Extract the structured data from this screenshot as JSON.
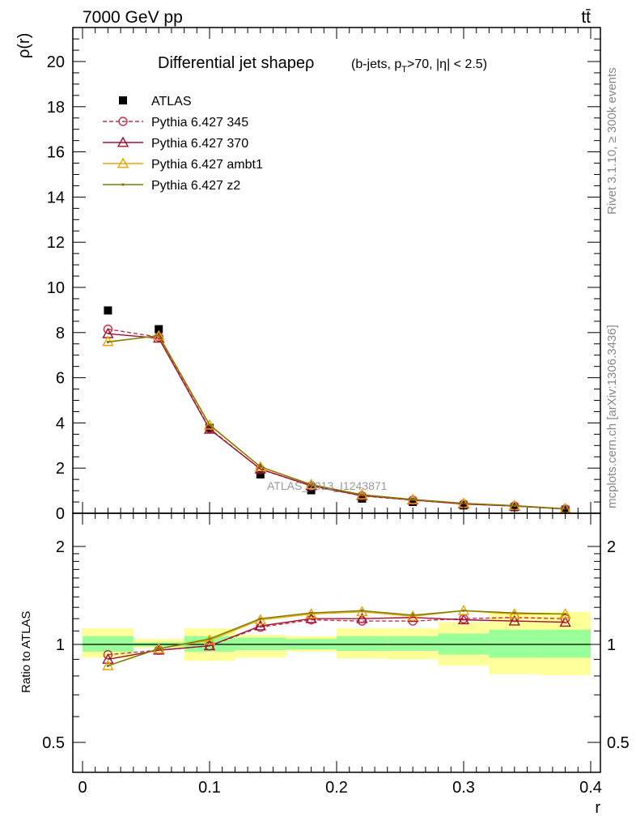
{
  "header": {
    "energy_label": "7000 GeV pp",
    "process_label": "tt̄"
  },
  "side_labels": {
    "rivet": "Rivet 3.1.10, ≥ 300k events",
    "mcplots": "mcplots.cern.ch [arXiv:1306.3436]"
  },
  "chart_data": [
    {
      "type": "line",
      "title_main": "Differential jet shapeρ",
      "title_sub": "(b-jets, p",
      "title_sub_T": "T",
      "title_sub_rest": ">70, |η| < 2.5)",
      "ylabel": "ρ(r)",
      "xlabel": "r",
      "watermark": "ATLAS_2013_I1243871",
      "xlim": [
        0,
        0.4
      ],
      "ylim": [
        0,
        21.5
      ],
      "yticks": [
        0,
        2,
        4,
        6,
        8,
        10,
        12,
        14,
        16,
        18,
        20
      ],
      "x": [
        0.02,
        0.06,
        0.1,
        0.14,
        0.18,
        0.22,
        0.26,
        0.3,
        0.34,
        0.38
      ],
      "legend_position": "top-left",
      "series": [
        {
          "name": "ATLAS",
          "color": "#000000",
          "marker": "square",
          "line": "none",
          "values": [
            8.98,
            8.15,
            3.78,
            1.72,
            1.02,
            0.65,
            0.5,
            0.35,
            0.27,
            0.16
          ]
        },
        {
          "name": "Pythia 6.427 345",
          "color": "#c0304a",
          "marker": "circle",
          "line": "dashed",
          "values": [
            8.15,
            7.8,
            3.75,
            1.95,
            1.21,
            0.77,
            0.58,
            0.41,
            0.32,
            0.19
          ]
        },
        {
          "name": "Pythia 6.427 370",
          "color": "#a01030",
          "marker": "triangle",
          "line": "solid",
          "values": [
            7.95,
            7.75,
            3.72,
            1.96,
            1.22,
            0.78,
            0.59,
            0.41,
            0.32,
            0.19
          ]
        },
        {
          "name": "Pythia 6.427 ambt1",
          "color": "#e8a400",
          "marker": "triangle",
          "line": "solid",
          "values": [
            7.6,
            7.85,
            3.9,
            2.05,
            1.27,
            0.82,
            0.61,
            0.44,
            0.34,
            0.2
          ]
        },
        {
          "name": "Pythia 6.427 z2",
          "color": "#7a7a00",
          "marker": "dot",
          "line": "solid",
          "values": [
            7.58,
            7.87,
            3.92,
            2.06,
            1.27,
            0.82,
            0.61,
            0.44,
            0.34,
            0.2
          ]
        }
      ]
    },
    {
      "type": "line",
      "ylabel": "Ratio to ATLAS",
      "xlabel": "r",
      "scale": "log",
      "ylim": [
        0.4,
        2.3
      ],
      "yticks": [
        0.5,
        1,
        2
      ],
      "xticks": [
        0,
        0.1,
        0.2,
        0.3,
        0.4
      ],
      "bin_edges": [
        0,
        0.04,
        0.08,
        0.12,
        0.16,
        0.2,
        0.24,
        0.28,
        0.32,
        0.36,
        0.4
      ],
      "band_inner": {
        "color": "#99ff99",
        "low": [
          0.95,
          0.985,
          0.95,
          0.96,
          0.965,
          0.955,
          0.955,
          0.93,
          0.91,
          0.91
        ],
        "high": [
          1.06,
          1.015,
          1.06,
          1.05,
          1.04,
          1.06,
          1.06,
          1.08,
          1.11,
          1.11
        ]
      },
      "band_outer": {
        "color": "#ffff99",
        "low": [
          0.91,
          0.975,
          0.89,
          0.91,
          0.95,
          0.905,
          0.9,
          0.86,
          0.81,
          0.805
        ],
        "high": [
          1.12,
          1.04,
          1.12,
          1.07,
          1.06,
          1.12,
          1.12,
          1.17,
          1.25,
          1.26
        ]
      },
      "x": [
        0.02,
        0.06,
        0.1,
        0.14,
        0.18,
        0.22,
        0.26,
        0.3,
        0.34,
        0.38
      ],
      "series": [
        {
          "name": "Pythia 6.427 345",
          "color": "#c0304a",
          "marker": "circle",
          "line": "dashed",
          "values": [
            0.93,
            0.96,
            0.99,
            1.13,
            1.19,
            1.18,
            1.18,
            1.2,
            1.21,
            1.2
          ]
        },
        {
          "name": "Pythia 6.427 370",
          "color": "#a01030",
          "marker": "triangle",
          "line": "solid",
          "values": [
            0.9,
            0.96,
            0.99,
            1.14,
            1.2,
            1.2,
            1.21,
            1.19,
            1.18,
            1.17
          ]
        },
        {
          "name": "Pythia 6.427 ambt1",
          "color": "#e8a400",
          "marker": "triangle",
          "line": "solid",
          "values": [
            0.86,
            0.97,
            1.03,
            1.19,
            1.24,
            1.26,
            1.22,
            1.27,
            1.24,
            1.24
          ]
        },
        {
          "name": "Pythia 6.427 z2",
          "color": "#7a7a00",
          "marker": "dot",
          "line": "solid",
          "values": [
            0.86,
            0.97,
            1.04,
            1.2,
            1.25,
            1.27,
            1.23,
            1.27,
            1.25,
            1.24
          ]
        }
      ]
    }
  ]
}
